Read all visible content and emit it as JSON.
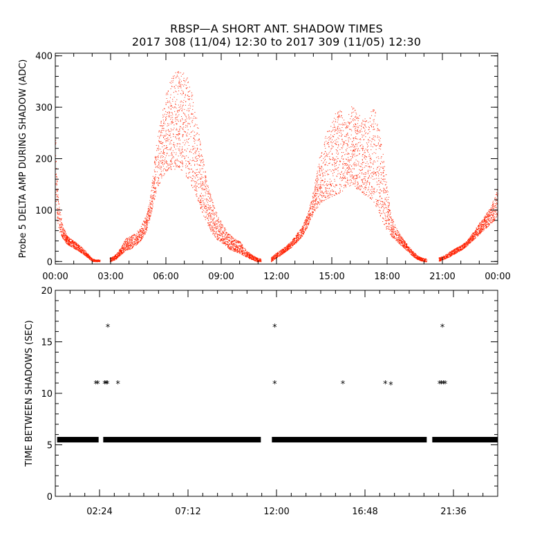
{
  "title_line1": "RBSP—A SHORT ANT. SHADOW TIMES",
  "title_line2": "2017 308 (11/04) 12:30 to 2017 309 (11/05) 12:30",
  "colors": {
    "points": "#ff2000",
    "axis": "#000000",
    "background": "#ffffff"
  },
  "chart_data": [
    {
      "type": "scatter",
      "title": "",
      "ylabel": "Probe 5 DELTA AMP DURING SHADOW (ADC)",
      "xlabel": "",
      "xlim": [
        0,
        24
      ],
      "ylim": [
        -5,
        405
      ],
      "x_ticks": [
        "00:00",
        "03:00",
        "06:00",
        "09:00",
        "12:00",
        "15:00",
        "18:00",
        "21:00",
        "00:00"
      ],
      "y_ticks": [
        "0",
        "100",
        "200",
        "300",
        "400"
      ],
      "x_unit": "hours",
      "envelope_x": [
        0.0,
        0.05,
        0.2,
        0.4,
        0.6,
        0.8,
        1.0,
        1.2,
        1.5,
        1.8,
        2.0,
        2.2,
        2.4,
        3.0,
        3.3,
        3.6,
        3.8,
        4.1,
        4.3,
        4.6,
        4.9,
        5.1,
        5.3,
        5.5,
        5.8,
        6.1,
        6.4,
        6.7,
        7.0,
        7.3,
        7.6,
        7.9,
        8.2,
        8.5,
        8.8,
        9.1,
        9.4,
        9.7,
        10.0,
        10.3,
        10.6,
        10.9,
        11.1,
        11.7,
        11.9,
        12.2,
        12.5,
        12.8,
        13.1,
        13.4,
        13.7,
        14.0,
        14.3,
        14.6,
        14.9,
        15.2,
        15.5,
        15.8,
        16.1,
        16.4,
        16.7,
        17.0,
        17.3,
        17.6,
        17.9,
        18.2,
        18.5,
        18.8,
        19.1,
        19.4,
        19.7,
        20.0,
        20.8,
        21.1,
        21.4,
        21.7,
        22.0,
        22.3,
        22.6,
        22.9,
        23.2,
        23.5,
        23.8,
        24.0
      ],
      "envelope_low": [
        130,
        90,
        60,
        45,
        35,
        30,
        26,
        22,
        15,
        6,
        0,
        0,
        0,
        0,
        5,
        15,
        22,
        25,
        30,
        40,
        55,
        80,
        110,
        140,
        165,
        178,
        180,
        178,
        170,
        155,
        130,
        100,
        75,
        55,
        42,
        35,
        25,
        20,
        16,
        10,
        5,
        0,
        0,
        0,
        5,
        12,
        20,
        28,
        38,
        50,
        70,
        95,
        110,
        120,
        125,
        130,
        135,
        145,
        150,
        140,
        130,
        125,
        115,
        90,
        65,
        50,
        40,
        30,
        20,
        10,
        3,
        0,
        0,
        5,
        10,
        16,
        22,
        30,
        40,
        50,
        60,
        70,
        80,
        90
      ],
      "envelope_high": [
        280,
        180,
        110,
        70,
        52,
        45,
        40,
        35,
        26,
        14,
        6,
        4,
        4,
        8,
        15,
        30,
        45,
        50,
        55,
        65,
        90,
        115,
        175,
        240,
        300,
        340,
        365,
        375,
        370,
        345,
        300,
        225,
        160,
        120,
        90,
        70,
        55,
        45,
        40,
        25,
        15,
        8,
        6,
        8,
        15,
        22,
        30,
        40,
        55,
        70,
        95,
        140,
        200,
        240,
        270,
        290,
        295,
        280,
        305,
        290,
        275,
        290,
        300,
        250,
        180,
        90,
        65,
        50,
        32,
        20,
        10,
        6,
        8,
        12,
        20,
        26,
        32,
        40,
        55,
        70,
        85,
        100,
        125,
        145
      ],
      "gaps": [
        [
          2.42,
          2.95
        ],
        [
          11.15,
          11.7
        ],
        [
          20.15,
          20.8
        ]
      ]
    },
    {
      "type": "scatter",
      "title": "",
      "ylabel": "TIME BETWEEN SHADOWS (SEC)",
      "xlabel": "",
      "xlim": [
        0,
        24
      ],
      "ylim": [
        0,
        20
      ],
      "x_ticks": [
        "02:24",
        "07:12",
        "12:00",
        "16:48",
        "21:36"
      ],
      "y_ticks": [
        "0",
        "5",
        "10",
        "15",
        "20"
      ],
      "x_unit": "hours",
      "baseline_value": 5.5,
      "baseline_segments": [
        [
          0.1,
          2.35
        ],
        [
          2.6,
          11.15
        ],
        [
          11.75,
          20.15
        ],
        [
          20.45,
          24.0
        ]
      ],
      "points": [
        [
          2.2,
          11
        ],
        [
          2.3,
          11
        ],
        [
          2.68,
          11
        ],
        [
          2.75,
          11
        ],
        [
          2.82,
          11
        ],
        [
          3.4,
          11
        ],
        [
          2.85,
          16.5
        ],
        [
          11.9,
          11
        ],
        [
          11.9,
          16.5
        ],
        [
          15.6,
          11
        ],
        [
          17.9,
          11
        ],
        [
          18.2,
          10.9
        ],
        [
          20.85,
          11
        ],
        [
          20.95,
          11
        ],
        [
          21.05,
          11
        ],
        [
          21.15,
          11
        ],
        [
          21.0,
          16.5
        ]
      ]
    }
  ]
}
